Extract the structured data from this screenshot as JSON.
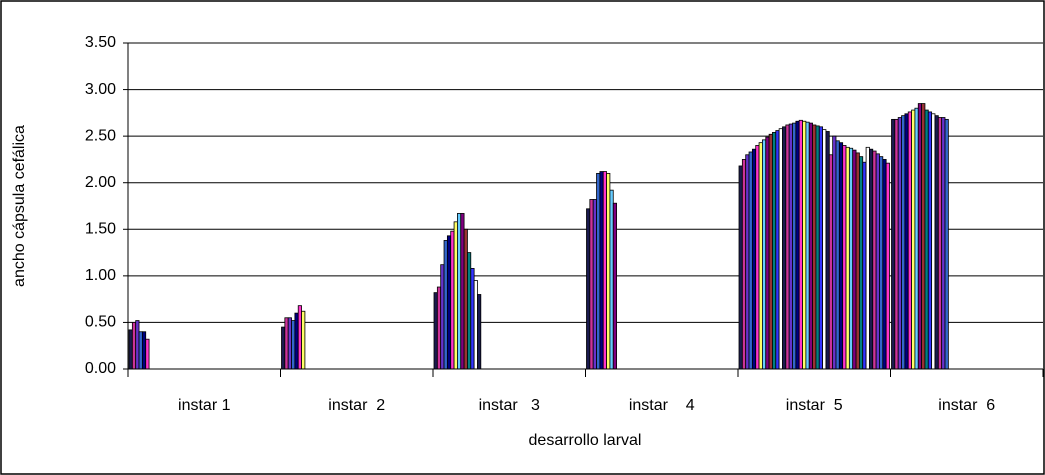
{
  "chart_data": {
    "type": "bar",
    "x_label": "desarrollo larval",
    "y_label": "ancho cápsula cefálica",
    "ylim": [
      0,
      3.5
    ],
    "yticks": [
      {
        "value": 0,
        "label": "0.00"
      },
      {
        "value": 0.5,
        "label": "0.50"
      },
      {
        "value": 1,
        "label": "1.00"
      },
      {
        "value": 1.5,
        "label": "1.50"
      },
      {
        "value": 2,
        "label": "2.00"
      },
      {
        "value": 2.5,
        "label": "2.50"
      },
      {
        "value": 3,
        "label": "3.00"
      },
      {
        "value": 3.5,
        "label": "3.50"
      }
    ],
    "grid": true,
    "colors": [
      "#1a1a4e",
      "#cc3399",
      "#6633cc",
      "#3366cc",
      "#000080",
      "#ff33cc",
      "#ffff66",
      "#66ccff",
      "#800080",
      "#993333",
      "#008080",
      "#3333ff",
      "#ffffff"
    ],
    "groups": [
      {
        "label": "instar 1",
        "values": [
          0.42,
          0.5,
          0.52,
          0.4,
          0.4,
          0.32
        ]
      },
      {
        "label": "instar  2",
        "values": [
          0.45,
          0.55,
          0.55,
          0.52,
          0.6,
          0.68,
          0.62
        ]
      },
      {
        "label": "instar   3",
        "values": [
          0.82,
          0.88,
          1.12,
          1.38,
          1.43,
          1.48,
          1.58,
          1.67,
          1.67,
          1.5,
          1.25,
          1.08,
          0.95,
          0.8
        ]
      },
      {
        "label": "instar    4",
        "values": [
          1.72,
          1.82,
          1.82,
          2.1,
          2.12,
          2.12,
          2.1,
          1.92,
          1.78
        ]
      },
      {
        "label": "instar  5",
        "values": [
          2.18,
          2.25,
          2.3,
          2.33,
          2.36,
          2.4,
          2.43,
          2.46,
          2.49,
          2.52,
          2.54,
          2.56,
          2.58,
          2.6,
          2.62,
          2.63,
          2.64,
          2.66,
          2.67,
          2.66,
          2.65,
          2.64,
          2.62,
          2.61,
          2.6,
          2.57,
          2.55,
          2.3,
          2.5,
          2.45,
          2.43,
          2.4,
          2.38,
          2.37,
          2.35,
          2.32,
          2.28,
          2.22,
          2.38,
          2.36,
          2.34,
          2.31,
          2.28,
          2.25,
          2.21
        ]
      },
      {
        "label": "instar  6",
        "values": [
          2.68,
          2.68,
          2.7,
          2.72,
          2.74,
          2.76,
          2.78,
          2.8,
          2.85,
          2.85,
          2.78,
          2.76,
          2.74,
          2.72,
          2.7,
          2.7,
          2.68
        ]
      }
    ]
  }
}
